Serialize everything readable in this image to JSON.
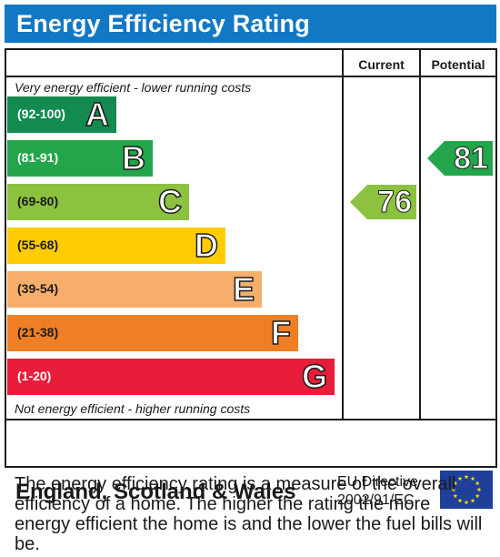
{
  "title": "Energy Efficiency Rating",
  "columns": {
    "current": "Current",
    "potential": "Potential"
  },
  "notes": {
    "top": "Very energy efficient - lower running costs",
    "bottom": "Not energy efficient - higher running costs"
  },
  "footer": {
    "region": "England, Scotland & Wales",
    "directive_line1": "EU Directive",
    "directive_line2": "2002/91/EC"
  },
  "description": "The energy efficiency rating is a measure of the overall efficiency of a home. The higher the rating the more energy efficient the home is and the lower the fuel bills will be.",
  "chart_data": {
    "type": "bar",
    "categories": [
      "A",
      "B",
      "C",
      "D",
      "E",
      "F",
      "G"
    ],
    "ranges": [
      "(92-100)",
      "(81-91)",
      "(69-80)",
      "(55-68)",
      "(39-54)",
      "(21-38)",
      "(1-20)"
    ],
    "colors": [
      "#138a4f",
      "#23a64b",
      "#8cc23f",
      "#ffcc02",
      "#f7ae6b",
      "#f07e23",
      "#e81d3a"
    ],
    "current": {
      "value": 76,
      "band": "C",
      "color": "#8cc23f"
    },
    "potential": {
      "value": 81,
      "band": "B",
      "color": "#23a64b"
    }
  }
}
